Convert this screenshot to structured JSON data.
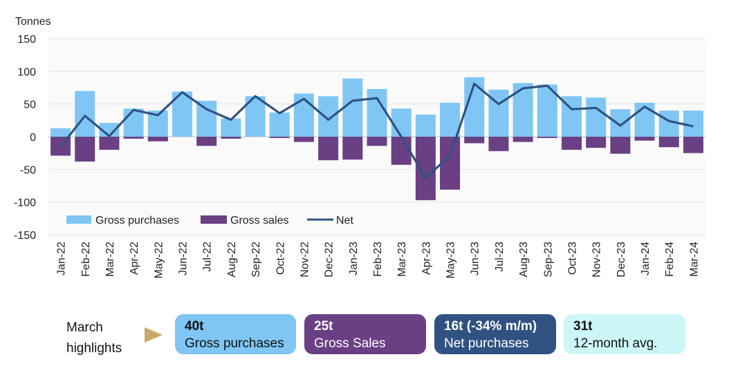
{
  "colors": {
    "purchases": "#7fc6f5",
    "sales": "#6a3f83",
    "net": "#2f5282",
    "avg": "#cdf6f8",
    "arrow": "#c9a86a",
    "grid": "#e3e3e3"
  },
  "chart_data": {
    "type": "bar",
    "ylabel": "Tonnes",
    "ylim": [
      -150,
      150
    ],
    "yticks": [
      150,
      100,
      50,
      0,
      -50,
      -100,
      -150
    ],
    "grid": true,
    "legend_position": "lower-left",
    "categories": [
      "Jan-22",
      "Feb-22",
      "Mar-22",
      "Apr-22",
      "May-22",
      "Jun-22",
      "Jul-22",
      "Aug-22",
      "Sep-22",
      "Oct-22",
      "Nov-22",
      "Dec-22",
      "Jan-23",
      "Feb-23",
      "Mar-23",
      "Apr-23",
      "May-23",
      "Jun-23",
      "Jul-23",
      "Aug-23",
      "Sep-23",
      "Oct-23",
      "Nov-23",
      "Dec-23",
      "Jan-24",
      "Feb-24",
      "Mar-24"
    ],
    "series": [
      {
        "name": "Gross purchases",
        "type": "bar",
        "values": [
          13,
          70,
          21,
          43,
          40,
          69,
          55,
          28,
          62,
          37,
          66,
          62,
          89,
          73,
          43,
          34,
          52,
          91,
          72,
          82,
          80,
          62,
          60,
          42,
          52,
          40,
          40
        ]
      },
      {
        "name": "Gross sales",
        "type": "bar",
        "values": [
          -29,
          -38,
          -20,
          -3,
          -7,
          0,
          -14,
          -3,
          0,
          -2,
          -8,
          -36,
          -35,
          -14,
          -43,
          -97,
          -81,
          -10,
          -22,
          -8,
          -2,
          -20,
          -17,
          -26,
          -6,
          -16,
          -25
        ]
      },
      {
        "name": "Net",
        "type": "line",
        "values": [
          -15,
          32,
          1,
          41,
          33,
          68,
          42,
          26,
          62,
          36,
          58,
          26,
          55,
          59,
          0,
          -63,
          -29,
          81,
          50,
          74,
          78,
          42,
          44,
          17,
          46,
          24,
          16
        ]
      }
    ]
  },
  "highlights": {
    "label": "March\nhighlights",
    "cards": [
      {
        "value": "40t",
        "text": "Gross purchases"
      },
      {
        "value": "25t",
        "text": "Gross Sales"
      },
      {
        "value": "16t (-34% m/m)",
        "text": "Net purchases"
      },
      {
        "value": "31t",
        "text": "12-month avg."
      }
    ]
  }
}
